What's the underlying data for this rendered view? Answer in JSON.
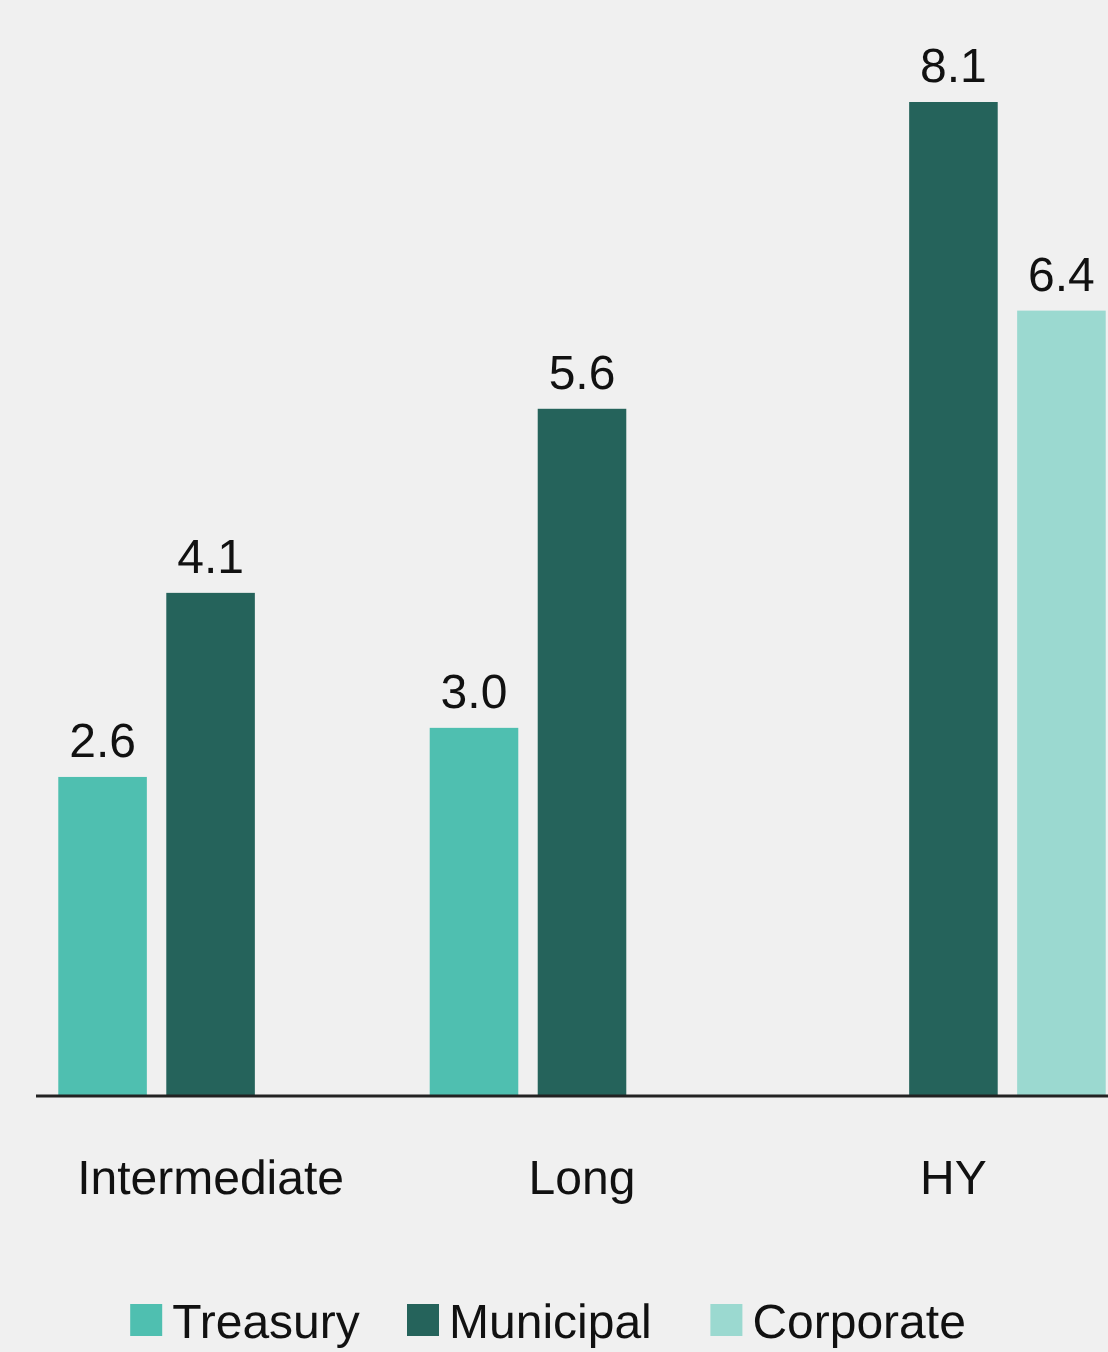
{
  "chart_data": {
    "type": "bar",
    "categories": [
      "Intermediate",
      "Long",
      "HY"
    ],
    "series": [
      {
        "name": "Treasury",
        "color": "#4fbfb0",
        "values": [
          2.6,
          3.0,
          null
        ],
        "value_labels": [
          "2.6",
          "3.0",
          null
        ]
      },
      {
        "name": "Municipal",
        "color": "#25635b",
        "values": [
          4.1,
          5.6,
          8.1
        ],
        "value_labels": [
          "4.1",
          "5.6",
          "8.1"
        ]
      },
      {
        "name": "Corporate",
        "color": "#9bd9d0",
        "values": [
          null,
          null,
          6.4
        ],
        "value_labels": [
          null,
          null,
          "6.4"
        ]
      }
    ],
    "legend": "bottom",
    "grid": false
  }
}
